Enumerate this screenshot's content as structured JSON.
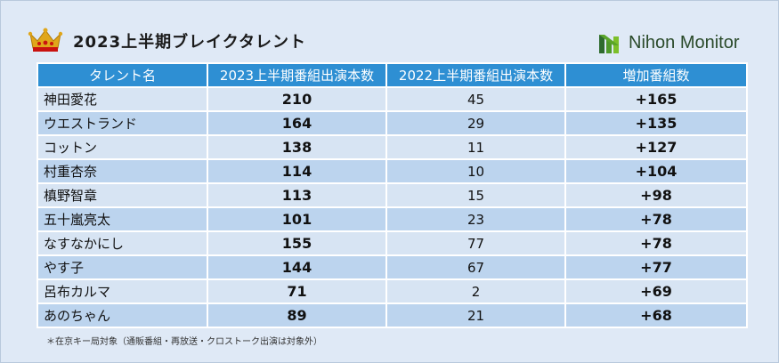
{
  "header": {
    "title": "2023上半期ブレイクタレント",
    "logo_text": "Nihon Monitor",
    "crown_icon": "crown-icon"
  },
  "colors": {
    "header_bg": "#2e8fd3",
    "row_light": "#d7e4f3",
    "row_dark": "#bcd4ee"
  },
  "chart_data": {
    "type": "table",
    "title": "2023上半期ブレイクタレント",
    "columns": [
      "タレント名",
      "2023上半期番組出演本数",
      "2022上半期番組出演本数",
      "増加番組数"
    ],
    "rows": [
      [
        "神田愛花",
        "210",
        "45",
        "+165"
      ],
      [
        "ウエストランド",
        "164",
        "29",
        "+135"
      ],
      [
        "コットン",
        "138",
        "11",
        "+127"
      ],
      [
        "村重杏奈",
        "114",
        "10",
        "+104"
      ],
      [
        "槙野智章",
        "113",
        "15",
        "+98"
      ],
      [
        "五十嵐亮太",
        "101",
        "23",
        "+78"
      ],
      [
        "なすなかにし",
        "155",
        "77",
        "+78"
      ],
      [
        "やす子",
        "144",
        "67",
        "+77"
      ],
      [
        "呂布カルマ",
        "71",
        "2",
        "+69"
      ],
      [
        "あのちゃん",
        "89",
        "21",
        "+68"
      ]
    ]
  },
  "footnote": "＊在京キー局対象（通販番組・再放送・クロストーク出演は対象外）"
}
